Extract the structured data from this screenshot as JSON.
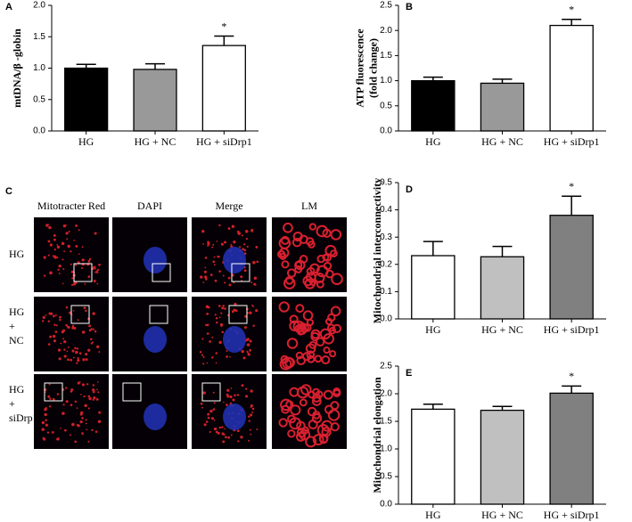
{
  "chart_data": [
    {
      "type": "bar",
      "panel": "A",
      "ylabel": [
        "mtDNA/β -globin"
      ],
      "categories": [
        "HG",
        "HG + NC",
        "HG + siDrp1"
      ],
      "values": [
        1.0,
        0.98,
        1.36
      ],
      "errors": [
        0.06,
        0.09,
        0.15
      ],
      "colors": [
        "#000000",
        "#999999",
        "#ffffff"
      ],
      "annotations": [
        null,
        null,
        "*"
      ],
      "ylim": [
        0,
        2
      ],
      "yticks": [
        {
          "value": 0,
          "label": "0.0"
        },
        {
          "value": 0.5,
          "label": "0.5"
        },
        {
          "value": 1,
          "label": "1.0"
        },
        {
          "value": 1.5,
          "label": "1.5"
        },
        {
          "value": 2,
          "label": "2.0"
        }
      ]
    },
    {
      "type": "bar",
      "panel": "B",
      "ylabel": [
        "ATP fluorescence",
        "(fold change)"
      ],
      "categories": [
        "HG",
        "HG + NC",
        "HG + siDrp1"
      ],
      "values": [
        1.0,
        0.95,
        2.1
      ],
      "errors": [
        0.07,
        0.08,
        0.12
      ],
      "colors": [
        "#000000",
        "#999999",
        "#ffffff"
      ],
      "annotations": [
        null,
        null,
        "*"
      ],
      "ylim": [
        0,
        2.5
      ],
      "yticks": [
        {
          "value": 0,
          "label": "0.0"
        },
        0.5,
        {
          "value": 1,
          "label": "1.0"
        },
        1.5,
        {
          "value": 2,
          "label": "2.0"
        },
        2.5
      ]
    },
    {
      "type": "bar",
      "panel": "D",
      "ylabel": [
        "Mitochondrial interconnectivity"
      ],
      "categories": [
        "HG",
        "HG + NC",
        "HG + siDrp1"
      ],
      "values": [
        0.232,
        0.228,
        0.38
      ],
      "errors": [
        0.052,
        0.038,
        0.07
      ],
      "colors": [
        "#ffffff",
        "#c0c0c0",
        "#808080"
      ],
      "annotations": [
        null,
        null,
        "*"
      ],
      "ylim": [
        0,
        0.5
      ],
      "yticks": [
        {
          "value": 0,
          "label": "0.0"
        },
        0.1,
        0.2,
        0.3,
        0.4,
        0.5
      ]
    },
    {
      "type": "bar",
      "panel": "E",
      "ylabel": [
        "Mitochondrial elongation"
      ],
      "categories": [
        "HG",
        "HG + NC",
        "HG + siDrp1"
      ],
      "values": [
        1.72,
        1.7,
        2.01
      ],
      "errors": [
        0.09,
        0.07,
        0.13
      ],
      "colors": [
        "#ffffff",
        "#c0c0c0",
        "#808080"
      ],
      "annotations": [
        null,
        null,
        "*"
      ],
      "ylim": [
        0,
        2.5
      ],
      "yticks": [
        {
          "value": 0,
          "label": "0.0"
        },
        0.5,
        {
          "value": 1,
          "label": "1.0"
        },
        1.5,
        {
          "value": 2,
          "label": "2.0"
        },
        2.5
      ]
    }
  ],
  "image_panel": {
    "panel": "C",
    "columns": [
      "Mitotracter Red",
      "DAPI",
      "Merge",
      "LM"
    ],
    "rows": [
      [
        "HG"
      ],
      [
        "HG",
        "+",
        "NC"
      ],
      [
        "HG",
        "+",
        "siDrp1"
      ]
    ]
  }
}
